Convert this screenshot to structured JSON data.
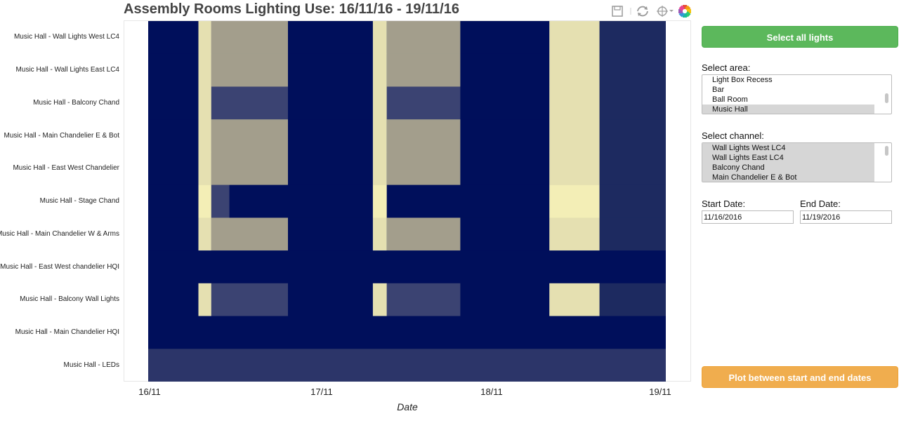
{
  "title": "Assembly Rooms Lighting Use: 16/11/16 - 19/11/16",
  "toolbar": {
    "icons": [
      "save-icon",
      "reset-icon",
      "crosshair-icon",
      "bokeh-logo-icon"
    ]
  },
  "chart_data": {
    "type": "heatmap",
    "xlabel": "Date",
    "x_ticks": [
      "16/11",
      "17/11",
      "18/11",
      "19/11"
    ],
    "x_range": [
      "2016-11-16 00:00",
      "2016-11-19 00:00"
    ],
    "y_categories": [
      "Music Hall - Wall Lights West LC4",
      "Music Hall - Wall Lights East LC4",
      "Music Hall - Balcony Chand",
      "Music Hall - Main Chandelier E & Bot",
      "Music Hall - East West Chandelier",
      "Music Hall - Stage Chand",
      "Music Hall - Main Chandelier W & Arms",
      "Music Hall - East West chandelier HQI",
      "Music Hall - Balcony Wall Lights",
      "Music Hall - Main Chandelier HQI",
      "Music Hall - LEDs"
    ],
    "colors": {
      "off": "#000f5b",
      "dim": "#3b4372",
      "mid": "#a39e8c",
      "on": "#e5e0b1",
      "bright": "#f3eeb6",
      "low": "#1d2a60",
      "leds": "#2c3569"
    },
    "segments": [
      {
        "row": 0,
        "start": 0.0,
        "end": 0.097,
        "level": "off"
      },
      {
        "row": 0,
        "start": 0.097,
        "end": 0.122,
        "level": "on"
      },
      {
        "row": 0,
        "start": 0.122,
        "end": 0.19,
        "level": "mid"
      },
      {
        "row": 0,
        "start": 0.19,
        "end": 0.27,
        "level": "mid"
      },
      {
        "row": 0,
        "start": 0.27,
        "end": 0.434,
        "level": "off"
      },
      {
        "row": 0,
        "start": 0.434,
        "end": 0.461,
        "level": "on"
      },
      {
        "row": 0,
        "start": 0.461,
        "end": 0.603,
        "level": "mid"
      },
      {
        "row": 0,
        "start": 0.603,
        "end": 0.775,
        "level": "off"
      },
      {
        "row": 0,
        "start": 0.775,
        "end": 0.872,
        "level": "on"
      },
      {
        "row": 0,
        "start": 0.872,
        "end": 1.0,
        "level": "low"
      },
      {
        "row": 1,
        "start": 0.0,
        "end": 0.097,
        "level": "off"
      },
      {
        "row": 1,
        "start": 0.097,
        "end": 0.122,
        "level": "on"
      },
      {
        "row": 1,
        "start": 0.122,
        "end": 0.27,
        "level": "mid"
      },
      {
        "row": 1,
        "start": 0.27,
        "end": 0.434,
        "level": "off"
      },
      {
        "row": 1,
        "start": 0.434,
        "end": 0.461,
        "level": "on"
      },
      {
        "row": 1,
        "start": 0.461,
        "end": 0.603,
        "level": "mid"
      },
      {
        "row": 1,
        "start": 0.603,
        "end": 0.775,
        "level": "off"
      },
      {
        "row": 1,
        "start": 0.775,
        "end": 0.872,
        "level": "on"
      },
      {
        "row": 1,
        "start": 0.872,
        "end": 1.0,
        "level": "low"
      },
      {
        "row": 2,
        "start": 0.0,
        "end": 0.097,
        "level": "off"
      },
      {
        "row": 2,
        "start": 0.097,
        "end": 0.122,
        "level": "on"
      },
      {
        "row": 2,
        "start": 0.122,
        "end": 0.27,
        "level": "dim"
      },
      {
        "row": 2,
        "start": 0.27,
        "end": 0.434,
        "level": "off"
      },
      {
        "row": 2,
        "start": 0.434,
        "end": 0.461,
        "level": "on"
      },
      {
        "row": 2,
        "start": 0.461,
        "end": 0.603,
        "level": "dim"
      },
      {
        "row": 2,
        "start": 0.603,
        "end": 0.775,
        "level": "off"
      },
      {
        "row": 2,
        "start": 0.775,
        "end": 0.872,
        "level": "on"
      },
      {
        "row": 2,
        "start": 0.872,
        "end": 1.0,
        "level": "low"
      },
      {
        "row": 3,
        "start": 0.0,
        "end": 0.097,
        "level": "off"
      },
      {
        "row": 3,
        "start": 0.097,
        "end": 0.122,
        "level": "on"
      },
      {
        "row": 3,
        "start": 0.122,
        "end": 0.27,
        "level": "mid"
      },
      {
        "row": 3,
        "start": 0.27,
        "end": 0.434,
        "level": "off"
      },
      {
        "row": 3,
        "start": 0.434,
        "end": 0.461,
        "level": "on"
      },
      {
        "row": 3,
        "start": 0.461,
        "end": 0.603,
        "level": "mid"
      },
      {
        "row": 3,
        "start": 0.603,
        "end": 0.775,
        "level": "off"
      },
      {
        "row": 3,
        "start": 0.775,
        "end": 0.872,
        "level": "on"
      },
      {
        "row": 3,
        "start": 0.872,
        "end": 1.0,
        "level": "low"
      },
      {
        "row": 4,
        "start": 0.0,
        "end": 0.097,
        "level": "off"
      },
      {
        "row": 4,
        "start": 0.097,
        "end": 0.122,
        "level": "on"
      },
      {
        "row": 4,
        "start": 0.122,
        "end": 0.27,
        "level": "mid"
      },
      {
        "row": 4,
        "start": 0.27,
        "end": 0.434,
        "level": "off"
      },
      {
        "row": 4,
        "start": 0.434,
        "end": 0.461,
        "level": "on"
      },
      {
        "row": 4,
        "start": 0.461,
        "end": 0.603,
        "level": "mid"
      },
      {
        "row": 4,
        "start": 0.603,
        "end": 0.775,
        "level": "off"
      },
      {
        "row": 4,
        "start": 0.775,
        "end": 0.872,
        "level": "on"
      },
      {
        "row": 4,
        "start": 0.872,
        "end": 1.0,
        "level": "low"
      },
      {
        "row": 5,
        "start": 0.0,
        "end": 0.097,
        "level": "off"
      },
      {
        "row": 5,
        "start": 0.097,
        "end": 0.122,
        "level": "bright"
      },
      {
        "row": 5,
        "start": 0.122,
        "end": 0.157,
        "level": "dim"
      },
      {
        "row": 5,
        "start": 0.157,
        "end": 0.434,
        "level": "off"
      },
      {
        "row": 5,
        "start": 0.434,
        "end": 0.461,
        "level": "bright"
      },
      {
        "row": 5,
        "start": 0.461,
        "end": 0.775,
        "level": "off"
      },
      {
        "row": 5,
        "start": 0.775,
        "end": 0.872,
        "level": "bright"
      },
      {
        "row": 5,
        "start": 0.872,
        "end": 1.0,
        "level": "low"
      },
      {
        "row": 6,
        "start": 0.0,
        "end": 0.097,
        "level": "off"
      },
      {
        "row": 6,
        "start": 0.097,
        "end": 0.122,
        "level": "on"
      },
      {
        "row": 6,
        "start": 0.122,
        "end": 0.27,
        "level": "mid"
      },
      {
        "row": 6,
        "start": 0.27,
        "end": 0.434,
        "level": "off"
      },
      {
        "row": 6,
        "start": 0.434,
        "end": 0.461,
        "level": "on"
      },
      {
        "row": 6,
        "start": 0.461,
        "end": 0.603,
        "level": "mid"
      },
      {
        "row": 6,
        "start": 0.603,
        "end": 0.775,
        "level": "off"
      },
      {
        "row": 6,
        "start": 0.775,
        "end": 0.872,
        "level": "on"
      },
      {
        "row": 6,
        "start": 0.872,
        "end": 1.0,
        "level": "low"
      },
      {
        "row": 7,
        "start": 0.0,
        "end": 1.0,
        "level": "off"
      },
      {
        "row": 8,
        "start": 0.0,
        "end": 0.097,
        "level": "off"
      },
      {
        "row": 8,
        "start": 0.097,
        "end": 0.122,
        "level": "on"
      },
      {
        "row": 8,
        "start": 0.122,
        "end": 0.27,
        "level": "dim"
      },
      {
        "row": 8,
        "start": 0.27,
        "end": 0.434,
        "level": "off"
      },
      {
        "row": 8,
        "start": 0.434,
        "end": 0.461,
        "level": "on"
      },
      {
        "row": 8,
        "start": 0.461,
        "end": 0.603,
        "level": "dim"
      },
      {
        "row": 8,
        "start": 0.603,
        "end": 0.775,
        "level": "off"
      },
      {
        "row": 8,
        "start": 0.775,
        "end": 0.872,
        "level": "on"
      },
      {
        "row": 8,
        "start": 0.872,
        "end": 1.0,
        "level": "low"
      },
      {
        "row": 9,
        "start": 0.0,
        "end": 1.0,
        "level": "off"
      },
      {
        "row": 10,
        "start": 0.0,
        "end": 1.0,
        "level": "leds"
      }
    ]
  },
  "controls": {
    "select_all_label": "Select all lights",
    "area_label": "Select area:",
    "area_options": [
      {
        "label": "Light Box Recess",
        "selected": false
      },
      {
        "label": "Bar",
        "selected": false
      },
      {
        "label": "Ball Room",
        "selected": false
      },
      {
        "label": "Music Hall",
        "selected": true
      }
    ],
    "channel_label": "Select channel:",
    "channel_options": [
      {
        "label": "Wall Lights West LC4",
        "selected": true
      },
      {
        "label": "Wall Lights East LC4",
        "selected": true
      },
      {
        "label": "Balcony Chand",
        "selected": true
      },
      {
        "label": "Main Chandelier E & Bot",
        "selected": true
      }
    ],
    "start_label": "Start Date:",
    "start_value": "11/16/2016",
    "end_label": "End Date:",
    "end_value": "11/19/2016",
    "plot_label": "Plot between start and end dates",
    "accent_green": "#5cb85c",
    "accent_orange": "#f0ad4e"
  }
}
